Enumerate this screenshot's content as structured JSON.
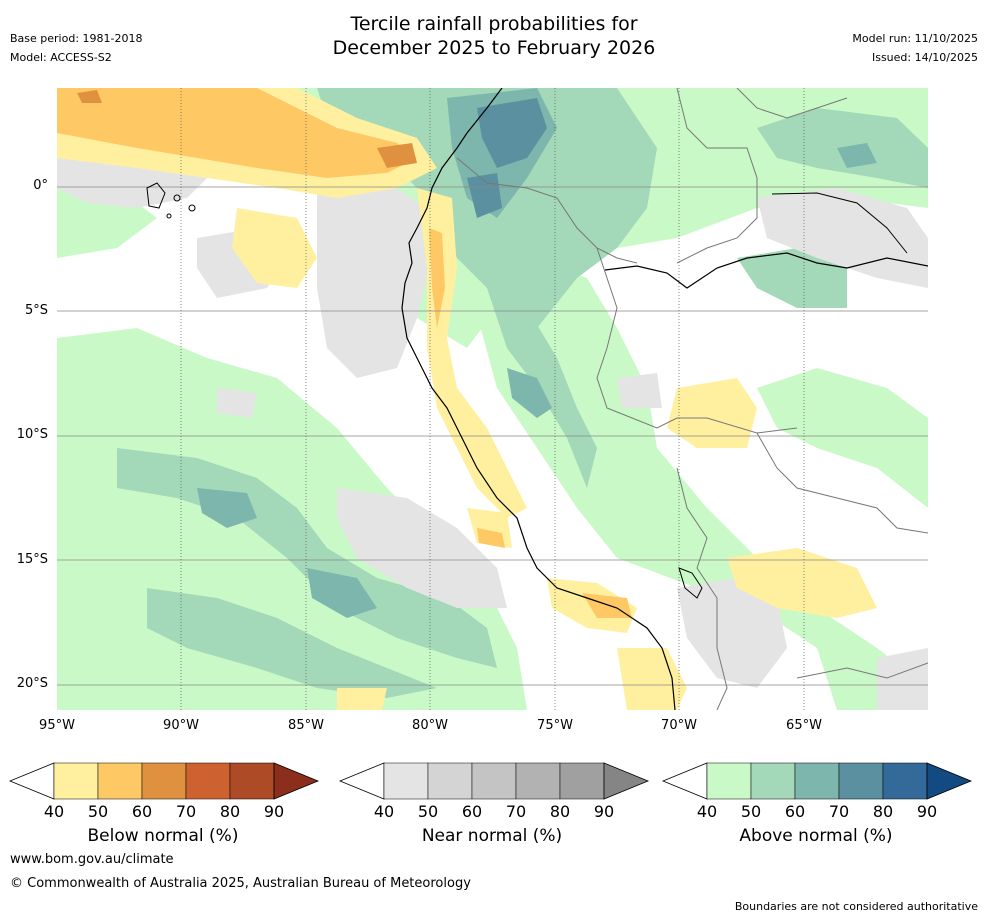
{
  "header": {
    "title_line1": "Tercile rainfall probabilities for",
    "title_line2": "December 2025 to February 2026",
    "base_period": "Base period: 1981-2018",
    "model": "Model: ACCESS-S2",
    "model_run": "Model run: 11/10/2025",
    "issued": "Issued: 14/10/2025"
  },
  "map": {
    "lat_labels": [
      "0°",
      "5°S",
      "10°S",
      "15°S",
      "20°S"
    ],
    "lon_labels": [
      "95°W",
      "90°W",
      "85°W",
      "80°W",
      "75°W",
      "70°W",
      "65°W"
    ]
  },
  "legends": {
    "below": {
      "title": "Below normal (%)",
      "ticks": [
        "40",
        "50",
        "60",
        "70",
        "80",
        "90"
      ],
      "colors": [
        "#fff0a0",
        "#fec965",
        "#e09140",
        "#cd6230",
        "#ac4b25",
        "#8b2e1b"
      ]
    },
    "near": {
      "title": "Near normal (%)",
      "ticks": [
        "40",
        "50",
        "60",
        "70",
        "80",
        "90"
      ],
      "colors": [
        "#e4e4e4",
        "#d4d4d4",
        "#c4c4c4",
        "#b2b2b2",
        "#a0a0a0",
        "#858585"
      ]
    },
    "above": {
      "title": "Above normal (%)",
      "ticks": [
        "40",
        "50",
        "60",
        "70",
        "80",
        "90"
      ],
      "colors": [
        "#caf9c8",
        "#a3d8b8",
        "#7db6ac",
        "#5a90a0",
        "#336a9a",
        "#134a82"
      ]
    }
  },
  "footer": {
    "url": "www.bom.gov.au/climate",
    "copyright": "© Commonwealth of Australia 2025, Australian Bureau of Meteorology",
    "disclaimer": "Boundaries are not considered authoritative"
  }
}
